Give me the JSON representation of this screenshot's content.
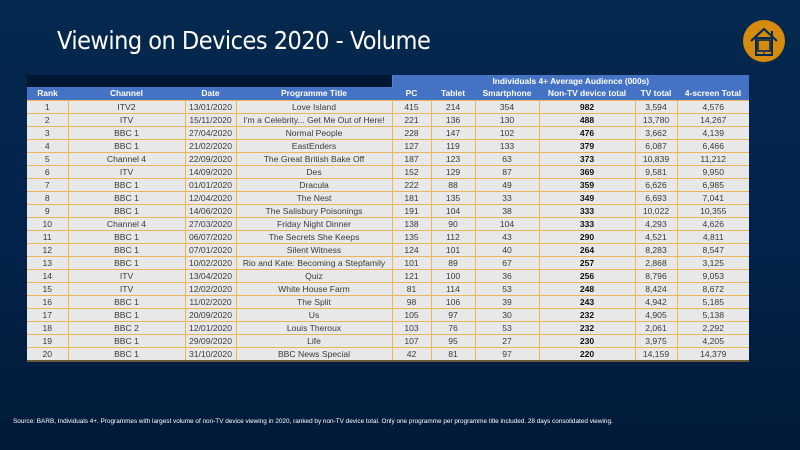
{
  "title": "Viewing on Devices 2020 - Volume",
  "logo_icon": "house-tablet-icon",
  "colors": {
    "background": "#03234a",
    "header": "#4472c4",
    "logo": "#d58b0b",
    "row": "#e8e8e8",
    "grid": "#e9b75a"
  },
  "table": {
    "group_header": "Individuals 4+ Average Audience (000s)",
    "columns": [
      "Rank",
      "Channel",
      "Date",
      "Programme Title",
      "PC",
      "Tablet",
      "Smartphone",
      "Non-TV device total",
      "TV total",
      "4-screen Total"
    ],
    "rows": [
      [
        "1",
        "ITV2",
        "13/01/2020",
        "Love Island",
        "415",
        "214",
        "354",
        "982",
        "3,594",
        "4,576"
      ],
      [
        "2",
        "ITV",
        "15/11/2020",
        "I'm a Celebrity... Get Me Out of Here!",
        "221",
        "136",
        "130",
        "488",
        "13,780",
        "14,267"
      ],
      [
        "3",
        "BBC 1",
        "27/04/2020",
        "Normal People",
        "228",
        "147",
        "102",
        "476",
        "3,662",
        "4,139"
      ],
      [
        "4",
        "BBC 1",
        "21/02/2020",
        "EastEnders",
        "127",
        "119",
        "133",
        "379",
        "6,087",
        "6,466"
      ],
      [
        "5",
        "Channel 4",
        "22/09/2020",
        "The Great British Bake Off",
        "187",
        "123",
        "63",
        "373",
        "10,839",
        "11,212"
      ],
      [
        "6",
        "ITV",
        "14/09/2020",
        "Des",
        "152",
        "129",
        "87",
        "369",
        "9,581",
        "9,950"
      ],
      [
        "7",
        "BBC 1",
        "01/01/2020",
        "Dracula",
        "222",
        "88",
        "49",
        "359",
        "6,626",
        "6,985"
      ],
      [
        "8",
        "BBC 1",
        "12/04/2020",
        "The Nest",
        "181",
        "135",
        "33",
        "349",
        "6,693",
        "7,041"
      ],
      [
        "9",
        "BBC 1",
        "14/06/2020",
        "The Salisbury Poisonings",
        "191",
        "104",
        "38",
        "333",
        "10,022",
        "10,355"
      ],
      [
        "10",
        "Channel 4",
        "27/03/2020",
        "Friday Night Dinner",
        "138",
        "90",
        "104",
        "333",
        "4,293",
        "4,626"
      ],
      [
        "11",
        "BBC 1",
        "06/07/2020",
        "The Secrets She Keeps",
        "135",
        "112",
        "43",
        "290",
        "4,521",
        "4,811"
      ],
      [
        "12",
        "BBC 1",
        "07/01/2020",
        "Silent Witness",
        "124",
        "101",
        "40",
        "264",
        "8,283",
        "8,547"
      ],
      [
        "13",
        "BBC 1",
        "10/02/2020",
        "Rio and Kate: Becoming a Stepfamily",
        "101",
        "89",
        "67",
        "257",
        "2,868",
        "3,125"
      ],
      [
        "14",
        "ITV",
        "13/04/2020",
        "Quiz",
        "121",
        "100",
        "36",
        "256",
        "8,796",
        "9,053"
      ],
      [
        "15",
        "ITV",
        "12/02/2020",
        "White House Farm",
        "81",
        "114",
        "53",
        "248",
        "8,424",
        "8,672"
      ],
      [
        "16",
        "BBC 1",
        "11/02/2020",
        "The Split",
        "98",
        "106",
        "39",
        "243",
        "4,942",
        "5,185"
      ],
      [
        "17",
        "BBC 1",
        "20/09/2020",
        "Us",
        "105",
        "97",
        "30",
        "232",
        "4,905",
        "5,138"
      ],
      [
        "18",
        "BBC 2",
        "12/01/2020",
        "Louis Theroux",
        "103",
        "76",
        "53",
        "232",
        "2,061",
        "2,292"
      ],
      [
        "19",
        "BBC 1",
        "29/09/2020",
        "Life",
        "107",
        "95",
        "27",
        "230",
        "3,975",
        "4,205"
      ],
      [
        "20",
        "BBC 1",
        "31/10/2020",
        "BBC News Special",
        "42",
        "81",
        "97",
        "220",
        "14,159",
        "14,379"
      ]
    ]
  },
  "footer": "Source: BARB, Individuals 4+. Programmes with largest volume of non-TV device viewing in 2020, ranked by non-TV device total. Only one programme per programme title included. 28 days consolidated viewing."
}
